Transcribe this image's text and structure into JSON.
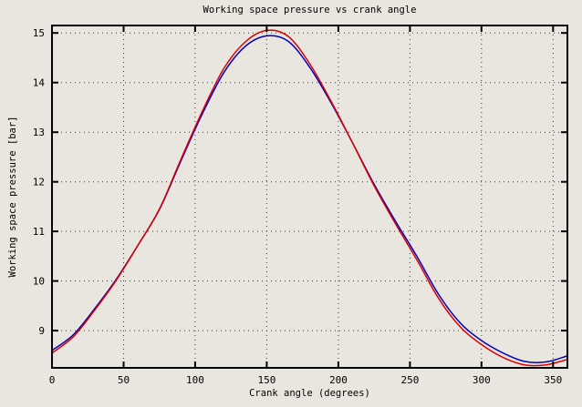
{
  "window": {
    "background": "#e9e6df",
    "foreground": "#000000"
  },
  "chart_data": {
    "type": "line",
    "title": "Working space pressure vs crank angle",
    "xlabel": "Crank angle (degrees)",
    "ylabel": "Working space pressure [bar]",
    "xlim": [
      0,
      360
    ],
    "ylim": [
      8.25,
      15.15
    ],
    "xticks": [
      0,
      50,
      100,
      150,
      200,
      250,
      300,
      350
    ],
    "yticks": [
      9,
      10,
      11,
      12,
      13,
      14,
      15
    ],
    "grid": "dotted",
    "legend_position": "none",
    "x": [
      0,
      15,
      30,
      45,
      60,
      75,
      90,
      105,
      120,
      135,
      150,
      165,
      180,
      195,
      210,
      225,
      240,
      255,
      270,
      285,
      300,
      315,
      330,
      345,
      360
    ],
    "series": [
      {
        "name": "blue-curve",
        "color": "#0000bb",
        "values": [
          8.6,
          8.92,
          9.45,
          10.04,
          10.72,
          11.44,
          12.42,
          13.37,
          14.2,
          14.73,
          14.94,
          14.83,
          14.31,
          13.59,
          12.78,
          11.95,
          11.2,
          10.49,
          9.73,
          9.16,
          8.8,
          8.55,
          8.38,
          8.37,
          8.49
        ]
      },
      {
        "name": "red-curve",
        "color": "#dd0000",
        "values": [
          8.55,
          8.88,
          9.42,
          10.02,
          10.72,
          11.45,
          12.45,
          13.42,
          14.28,
          14.82,
          15.05,
          14.93,
          14.38,
          13.62,
          12.78,
          11.92,
          11.15,
          10.42,
          9.65,
          9.08,
          8.72,
          8.46,
          8.31,
          8.31,
          8.42
        ]
      }
    ]
  }
}
